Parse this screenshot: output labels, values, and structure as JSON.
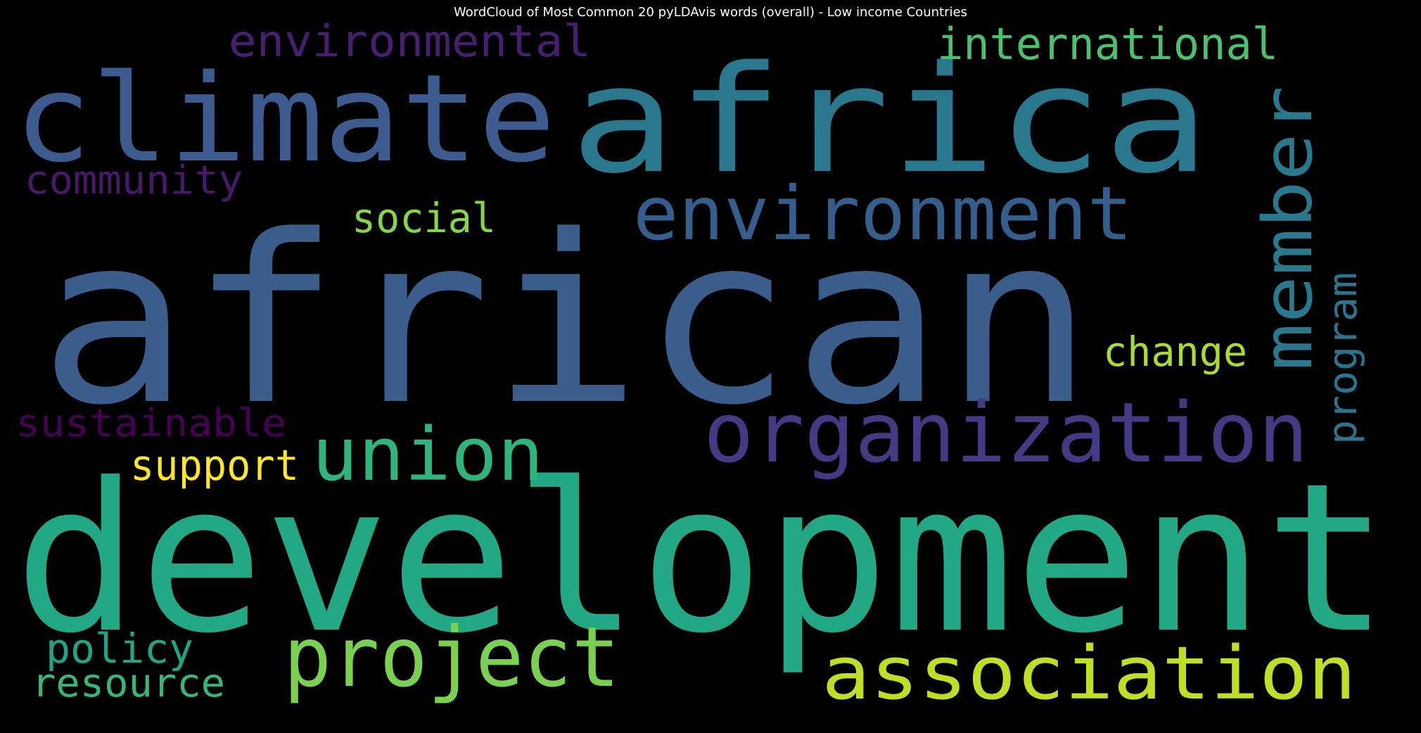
{
  "title": "WordCloud of Most Common 20 pyLDAvis words (overall) - Low income Countries",
  "words": [
    {
      "text": "african",
      "color": "#3b5d8c"
    },
    {
      "text": "development",
      "color": "#22a884"
    },
    {
      "text": "africa",
      "color": "#2a788e"
    },
    {
      "text": "climate",
      "color": "#3e5b8f"
    },
    {
      "text": "organization",
      "color": "#443a83"
    },
    {
      "text": "environment",
      "color": "#355e8d"
    },
    {
      "text": "project",
      "color": "#7ad151"
    },
    {
      "text": "association",
      "color": "#bddf26"
    },
    {
      "text": "union",
      "color": "#2fb47c"
    },
    {
      "text": "member",
      "color": "#29788e"
    },
    {
      "text": "international",
      "color": "#4ac16d"
    },
    {
      "text": "environmental",
      "color": "#481f70"
    },
    {
      "text": "social",
      "color": "#86d549"
    },
    {
      "text": "change",
      "color": "#a8db34"
    },
    {
      "text": "support",
      "color": "#fde725"
    },
    {
      "text": "community",
      "color": "#48186a"
    },
    {
      "text": "sustainable",
      "color": "#440154"
    },
    {
      "text": "program",
      "color": "#2c738e"
    },
    {
      "text": "policy",
      "color": "#20a386"
    },
    {
      "text": "resource",
      "color": "#35b779"
    }
  ]
}
